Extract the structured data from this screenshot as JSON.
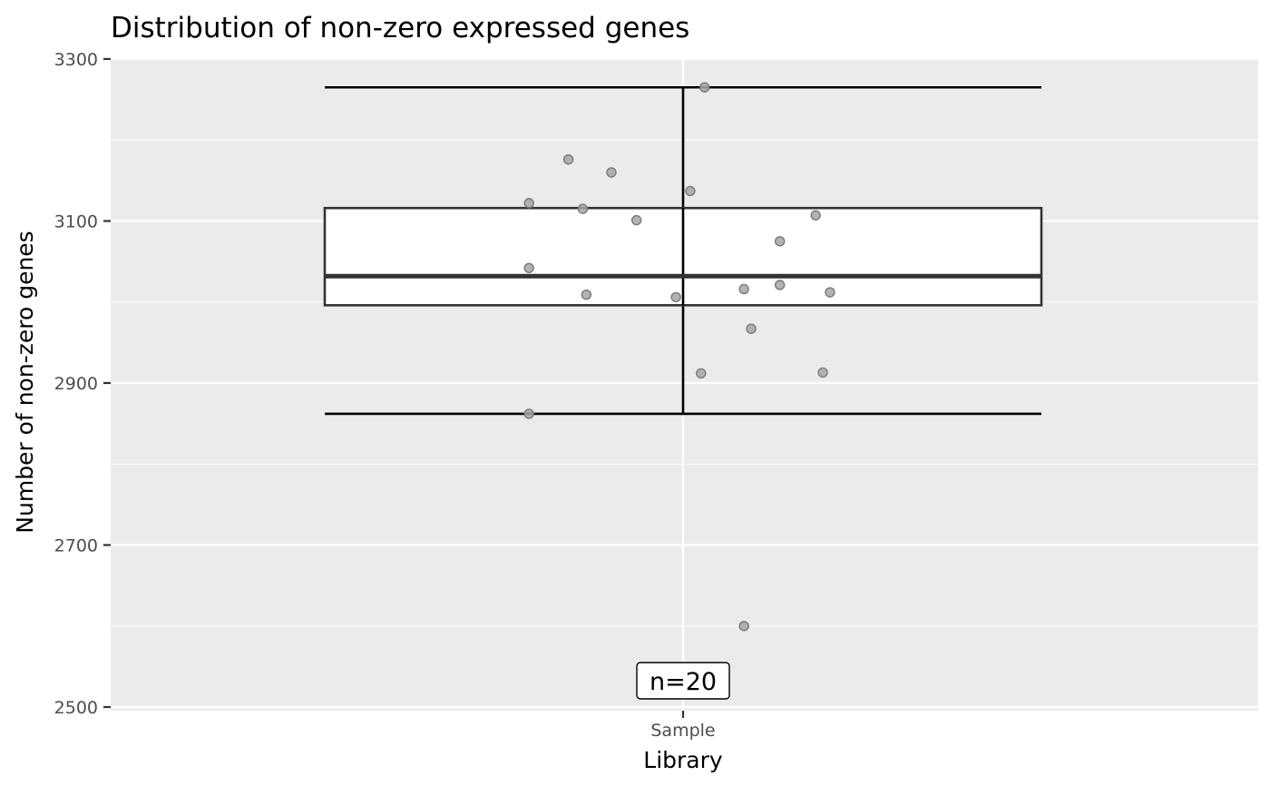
{
  "chart_data": {
    "type": "boxplot",
    "title": "Distribution of non-zero expressed genes",
    "xlabel": "Library",
    "ylabel": "Number of non-zero genes",
    "categories": [
      "Sample"
    ],
    "ylim": [
      2500,
      3300
    ],
    "yticks": [
      2500,
      2700,
      2900,
      3100,
      3300
    ],
    "grid": true,
    "box": {
      "whisker_low": 2862,
      "q1": 2996,
      "median": 3032,
      "q3": 3116,
      "whisker_high": 3265
    },
    "points": [
      {
        "x": -0.43,
        "y": 2862
      },
      {
        "x": -0.43,
        "y": 3042
      },
      {
        "x": -0.43,
        "y": 3122
      },
      {
        "x": -0.32,
        "y": 3176
      },
      {
        "x": -0.28,
        "y": 3115
      },
      {
        "x": -0.27,
        "y": 3009
      },
      {
        "x": -0.2,
        "y": 3160
      },
      {
        "x": -0.13,
        "y": 3101
      },
      {
        "x": -0.02,
        "y": 3006
      },
      {
        "x": 0.02,
        "y": 3137
      },
      {
        "x": 0.06,
        "y": 3265
      },
      {
        "x": 0.05,
        "y": 2912
      },
      {
        "x": 0.17,
        "y": 3016
      },
      {
        "x": 0.17,
        "y": 2600
      },
      {
        "x": 0.19,
        "y": 2967
      },
      {
        "x": 0.27,
        "y": 3075
      },
      {
        "x": 0.27,
        "y": 3021
      },
      {
        "x": 0.37,
        "y": 3107
      },
      {
        "x": 0.39,
        "y": 2913
      },
      {
        "x": 0.41,
        "y": 3012
      }
    ],
    "annotation": "n=20",
    "colors": {
      "panel": "#ebebeb",
      "grid_major": "#ffffff",
      "box_fill": "#ffffff",
      "box_line": "#333333",
      "whisker": "#000000",
      "point_fill": "#a6a6a6",
      "point_stroke": "#7a7a7a"
    }
  }
}
